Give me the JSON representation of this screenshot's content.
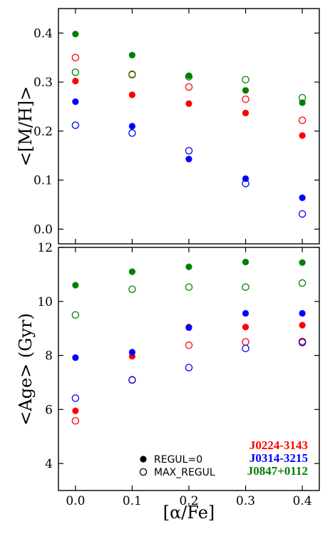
{
  "chart_data": [
    {
      "type": "scatter",
      "ylabel": "<[M/H]>",
      "ylim": [
        -0.03,
        0.45
      ],
      "yticks": [
        0.0,
        0.1,
        0.2,
        0.3,
        0.4
      ],
      "ytick_labels": [
        "0.0",
        "0.1",
        "0.2",
        "0.3",
        "0.4"
      ],
      "xlim": [
        -0.03,
        0.43
      ],
      "xticks": [
        0.0,
        0.1,
        0.2,
        0.3,
        0.4
      ],
      "series": [
        {
          "name": "J0224-3143",
          "color": "#ff0000",
          "marker": "filled",
          "x": [
            0.0,
            0.1,
            0.2,
            0.3,
            0.4
          ],
          "y": [
            0.302,
            0.274,
            0.256,
            0.237,
            0.191
          ]
        },
        {
          "name": "J0224-3143",
          "color": "#ff0000",
          "marker": "open",
          "x": [
            0.0,
            0.1,
            0.2,
            0.3,
            0.4
          ],
          "y": [
            0.35,
            0.315,
            0.29,
            0.265,
            0.222
          ]
        },
        {
          "name": "J0314-3215",
          "color": "#0000ff",
          "marker": "filled",
          "x": [
            0.0,
            0.1,
            0.2,
            0.3,
            0.4
          ],
          "y": [
            0.26,
            0.21,
            0.143,
            0.103,
            0.064
          ]
        },
        {
          "name": "J0314-3215",
          "color": "#0000ff",
          "marker": "open",
          "x": [
            0.0,
            0.1,
            0.2,
            0.3,
            0.4
          ],
          "y": [
            0.212,
            0.196,
            0.16,
            0.093,
            0.031
          ]
        },
        {
          "name": "J0847+0112",
          "color": "#008000",
          "marker": "filled",
          "x": [
            0.0,
            0.1,
            0.2,
            0.3,
            0.4
          ],
          "y": [
            0.398,
            0.355,
            0.313,
            0.283,
            0.258
          ]
        },
        {
          "name": "J0847+0112",
          "color": "#008000",
          "marker": "open",
          "x": [
            0.0,
            0.1,
            0.2,
            0.3,
            0.4
          ],
          "y": [
            0.32,
            0.316,
            0.311,
            0.305,
            0.268
          ]
        }
      ]
    },
    {
      "type": "scatter",
      "ylabel": "<Age> (Gyr)",
      "xlabel": "[α/Fe]",
      "ylim": [
        3.0,
        12.0
      ],
      "yticks": [
        4,
        6,
        8,
        10,
        12
      ],
      "ytick_labels": [
        "4",
        "6",
        "8",
        "10",
        "12"
      ],
      "xlim": [
        -0.03,
        0.43
      ],
      "xticks": [
        0.0,
        0.1,
        0.2,
        0.3,
        0.4
      ],
      "xtick_labels": [
        "0.0",
        "0.1",
        "0.2",
        "0.3",
        "0.4"
      ],
      "series": [
        {
          "name": "J0224-3143",
          "color": "#ff0000",
          "marker": "filled",
          "x": [
            0.0,
            0.1,
            0.2,
            0.3,
            0.4
          ],
          "y": [
            5.95,
            7.97,
            9.05,
            9.05,
            9.12
          ]
        },
        {
          "name": "J0224-3143",
          "color": "#ff0000",
          "marker": "open",
          "x": [
            0.0,
            0.1,
            0.2,
            0.3,
            0.4
          ],
          "y": [
            5.58,
            7.1,
            8.38,
            8.5,
            8.52
          ]
        },
        {
          "name": "J0314-3215",
          "color": "#0000ff",
          "marker": "filled",
          "x": [
            0.0,
            0.1,
            0.2,
            0.3,
            0.4
          ],
          "y": [
            7.92,
            8.12,
            9.03,
            9.56,
            9.56
          ]
        },
        {
          "name": "J0314-3215",
          "color": "#0000ff",
          "marker": "open",
          "x": [
            0.0,
            0.1,
            0.2,
            0.3,
            0.4
          ],
          "y": [
            6.42,
            7.09,
            7.55,
            8.26,
            8.48
          ]
        },
        {
          "name": "J0847+0112",
          "color": "#008000",
          "marker": "filled",
          "x": [
            0.0,
            0.1,
            0.2,
            0.3,
            0.4
          ],
          "y": [
            10.6,
            11.1,
            11.28,
            11.46,
            11.44
          ]
        },
        {
          "name": "J0847+0112",
          "color": "#008000",
          "marker": "open",
          "x": [
            0.0,
            0.1,
            0.2,
            0.3,
            0.4
          ],
          "y": [
            9.5,
            10.45,
            10.53,
            10.53,
            10.68
          ]
        }
      ],
      "legend": {
        "placement": "lower-right",
        "marker_entries": [
          {
            "marker": "filled",
            "label": "REGUL=0"
          },
          {
            "marker": "open",
            "label": "MAX_REGUL"
          }
        ],
        "series_entries": [
          {
            "label": "J0224-3143",
            "color": "#ff0000"
          },
          {
            "label": "J0314-3215",
            "color": "#0000ff"
          },
          {
            "label": "J0847+0112",
            "color": "#008000"
          }
        ]
      }
    }
  ]
}
